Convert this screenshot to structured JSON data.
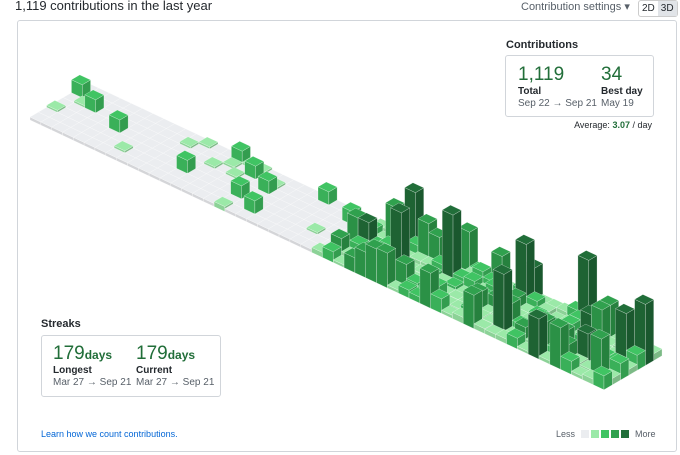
{
  "header": {
    "title": "1,119 contributions in the last year",
    "settings": "Contribution settings ▾",
    "toggle": [
      "2D",
      "3D"
    ]
  },
  "contributions": {
    "title": "Contributions",
    "total": {
      "value": "1,119",
      "label": "Total",
      "range": "Sep 22 → Sep 21"
    },
    "best": {
      "value": "34",
      "label": "Best day",
      "date": "May 19"
    },
    "average": {
      "label": "Average:",
      "value": "3.07",
      "unit": "/ day"
    }
  },
  "streaks": {
    "title": "Streaks",
    "longest": {
      "value": "179",
      "unit": "days",
      "label": "Longest",
      "range": "Mar 27 → Sep 21"
    },
    "current": {
      "value": "179",
      "unit": "days",
      "label": "Current",
      "range": "Mar 27 → Sep 21"
    }
  },
  "footer": {
    "link": "Learn how we count contributions.",
    "less": "Less",
    "more": "More"
  }
}
